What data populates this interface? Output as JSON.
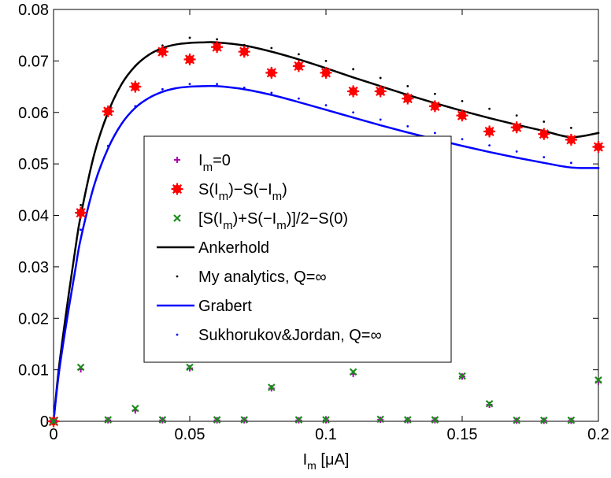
{
  "chart_data": {
    "type": "scatter",
    "xlabel": "I_m [μA]",
    "xlabel_parts": {
      "main": "I",
      "sub": "m",
      "rest": " [μA]"
    },
    "xlim": [
      0,
      0.2
    ],
    "ylim": [
      0,
      0.08
    ],
    "xticks": [
      0,
      0.05,
      0.1,
      0.15,
      0.2
    ],
    "xtick_labels": [
      "0",
      "0.05",
      "0.1",
      "0.15",
      "0.2"
    ],
    "yticks": [
      0,
      0.01,
      0.02,
      0.03,
      0.04,
      0.05,
      0.06,
      0.07,
      0.08
    ],
    "ytick_labels": [
      "0",
      "0.01",
      "0.02",
      "0.03",
      "0.04",
      "0.05",
      "0.06",
      "0.07",
      "0.08"
    ],
    "grid": false,
    "legend_position": "center",
    "legend": [
      {
        "key": "im0",
        "label": "I_m=0",
        "parts": [
          {
            "t": "I"
          },
          {
            "t": "m",
            "sub": true
          },
          {
            "t": "=0"
          }
        ],
        "marker": "plus",
        "color": "#b000b0"
      },
      {
        "key": "diff",
        "label": "S(I_m)−S(−I_m)",
        "parts": [
          {
            "t": "S(I"
          },
          {
            "t": "m",
            "sub": true
          },
          {
            "t": ")−S(−I"
          },
          {
            "t": "m",
            "sub": true
          },
          {
            "t": ")"
          }
        ],
        "marker": "star",
        "color": "#ff0000"
      },
      {
        "key": "sym",
        "label": "[S(I_m)+S(−I_m)]/2−S(0)",
        "parts": [
          {
            "t": "[S(I"
          },
          {
            "t": "m",
            "sub": true
          },
          {
            "t": ")+S(−I"
          },
          {
            "t": "m",
            "sub": true
          },
          {
            "t": ")]/2−S(0)"
          }
        ],
        "marker": "x",
        "color": "#1a8c1a"
      },
      {
        "key": "ankerhold",
        "label": "Ankerhold",
        "parts": [
          {
            "t": "Ankerhold"
          }
        ],
        "marker": "line",
        "color": "#000000"
      },
      {
        "key": "myan",
        "label": "My analytics, Q=∞",
        "parts": [
          {
            "t": "My analytics, Q=∞"
          }
        ],
        "marker": "dot",
        "color": "#000000"
      },
      {
        "key": "grabert",
        "label": "Grabert",
        "parts": [
          {
            "t": "Grabert"
          }
        ],
        "marker": "line",
        "color": "#0000ff"
      },
      {
        "key": "sukh",
        "label": "Sukhorukov&Jordan, Q=∞",
        "parts": [
          {
            "t": "Sukhorukov&Jordan, Q=∞"
          }
        ],
        "marker": "dot",
        "color": "#0000ff"
      }
    ],
    "x_points": [
      0,
      0.01,
      0.02,
      0.03,
      0.04,
      0.05,
      0.06,
      0.07,
      0.08,
      0.09,
      0.1,
      0.11,
      0.12,
      0.13,
      0.14,
      0.15,
      0.16,
      0.17,
      0.18,
      0.19,
      0.2
    ],
    "series": [
      {
        "key": "im0",
        "values": [
          0,
          0.0101,
          0.0002,
          0.0021,
          0.0002,
          0.0103,
          0.0002,
          0.0002,
          0.0064,
          0.0002,
          0.0002,
          0.0092,
          0.0003,
          0.0002,
          0.0002,
          0.0087,
          0.0032,
          0.0001,
          0.0001,
          0.0001,
          0.0077
        ]
      },
      {
        "key": "diff",
        "values": [
          0,
          0.0405,
          0.0602,
          0.065,
          0.0718,
          0.0703,
          0.0727,
          0.0718,
          0.0677,
          0.069,
          0.0677,
          0.0641,
          0.0641,
          0.0627,
          0.0612,
          0.0594,
          0.0563,
          0.0571,
          0.0558,
          0.0547,
          0.0533
        ]
      },
      {
        "key": "sym",
        "values": [
          0,
          0.0105,
          0.0003,
          0.0025,
          0.0003,
          0.0105,
          0.0003,
          0.0003,
          0.0066,
          0.0003,
          0.0003,
          0.0096,
          0.0004,
          0.0003,
          0.0003,
          0.0088,
          0.0034,
          0.0002,
          0.0002,
          0.0002,
          0.008
        ]
      },
      {
        "key": "ankerhold",
        "x": [
          0,
          0.002,
          0.005,
          0.008,
          0.01,
          0.015,
          0.02,
          0.025,
          0.03,
          0.035,
          0.04,
          0.045,
          0.05,
          0.055,
          0.06,
          0.07,
          0.08,
          0.09,
          0.1,
          0.11,
          0.12,
          0.13,
          0.14,
          0.15,
          0.16,
          0.17,
          0.18,
          0.19,
          0.2
        ],
        "values": [
          0,
          0.0105,
          0.0225,
          0.0335,
          0.04,
          0.052,
          0.06,
          0.0655,
          0.069,
          0.0712,
          0.0725,
          0.0732,
          0.0735,
          0.0736,
          0.0736,
          0.073,
          0.0718,
          0.0703,
          0.0686,
          0.0668,
          0.0651,
          0.0634,
          0.0618,
          0.0603,
          0.0589,
          0.0576,
          0.0564,
          0.0552,
          0.056
        ]
      },
      {
        "key": "myan",
        "values": [
          0,
          0.042,
          0.0605,
          0.069,
          0.073,
          0.0745,
          0.0742,
          0.0731,
          0.0725,
          0.0713,
          0.07,
          0.0684,
          0.0667,
          0.0651,
          0.0636,
          0.0622,
          0.0607,
          0.0594,
          0.0582,
          0.057,
          0.056
        ]
      },
      {
        "key": "grabert",
        "x": [
          0,
          0.002,
          0.005,
          0.008,
          0.01,
          0.015,
          0.02,
          0.025,
          0.03,
          0.035,
          0.04,
          0.045,
          0.05,
          0.055,
          0.06,
          0.07,
          0.08,
          0.09,
          0.1,
          0.11,
          0.12,
          0.13,
          0.14,
          0.15,
          0.16,
          0.17,
          0.18,
          0.19,
          0.2
        ],
        "values": [
          0,
          0.0095,
          0.02,
          0.0295,
          0.0355,
          0.046,
          0.053,
          0.0578,
          0.0609,
          0.0628,
          0.064,
          0.0647,
          0.065,
          0.0651,
          0.0651,
          0.0645,
          0.0634,
          0.062,
          0.0605,
          0.059,
          0.0575,
          0.0561,
          0.0548,
          0.0535,
          0.0523,
          0.0512,
          0.0502,
          0.0493,
          0.0492
        ]
      },
      {
        "key": "sukh",
        "values": [
          0,
          0.0372,
          0.0535,
          0.0612,
          0.0645,
          0.0655,
          0.0655,
          0.0648,
          0.0638,
          0.0627,
          0.0614,
          0.06,
          0.0586,
          0.0573,
          0.056,
          0.0548,
          0.0536,
          0.0524,
          0.0513,
          0.0502,
          0.0492
        ]
      }
    ]
  }
}
